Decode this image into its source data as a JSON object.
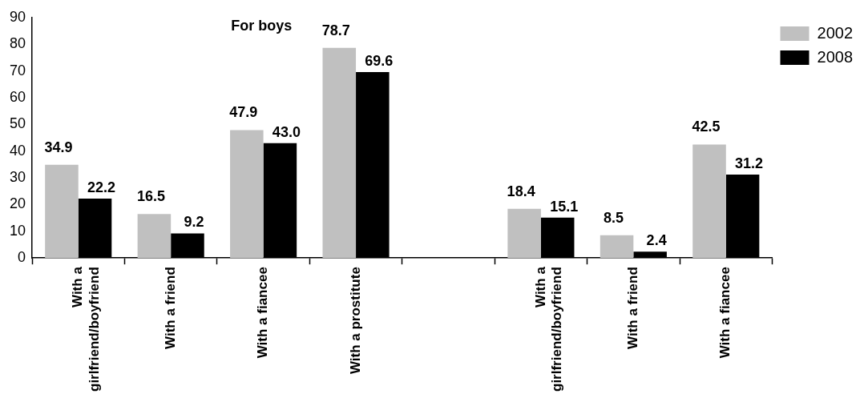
{
  "chart_data": {
    "type": "bar",
    "annotations": [
      "For boys"
    ],
    "categories": [
      "With a girlfriend/boyfriend",
      "With a friend",
      "With a fiancee",
      "With a prostitute",
      null,
      "With a girlfriend/boyfriend",
      "With a friend",
      "With a fiancee"
    ],
    "series": [
      {
        "name": "2002",
        "color": "#c0c0c0",
        "values": [
          34.9,
          16.5,
          47.9,
          78.7,
          null,
          18.4,
          8.5,
          42.5
        ],
        "value_labels": [
          "34.9",
          "16.5",
          "47.9",
          "78.7",
          null,
          "18.4",
          "8.5",
          "42.5"
        ]
      },
      {
        "name": "2008",
        "color": "#000000",
        "values": [
          22.2,
          9.2,
          43.0,
          69.6,
          null,
          15.1,
          2.4,
          31.2
        ],
        "value_labels": [
          "22.2",
          "9.2",
          "43.0",
          "69.6",
          null,
          "15.1",
          "2.4",
          "31.2"
        ]
      }
    ],
    "ylim": [
      0,
      90
    ],
    "yticks": [
      0,
      10,
      20,
      30,
      40,
      50,
      60,
      70,
      80,
      90
    ],
    "grid": false,
    "legend": "top right"
  }
}
